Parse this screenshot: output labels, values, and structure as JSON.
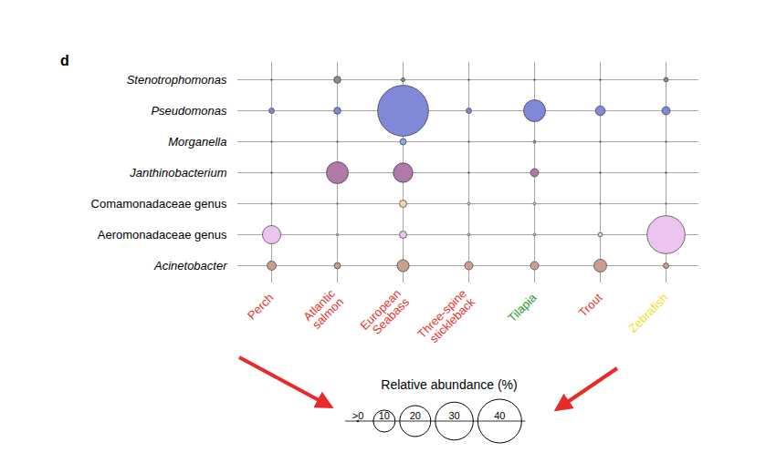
{
  "chart_data": {
    "type": "bubble",
    "title": "d",
    "x": [
      {
        "label": "Perch",
        "color": "#e8332a"
      },
      {
        "label": "Atlantic salmon",
        "color": "#e8332a"
      },
      {
        "label": "European Seabass",
        "color": "#e8332a"
      },
      {
        "label": "Three-spine stickleback",
        "color": "#e8332a"
      },
      {
        "label": "Tilapia",
        "color": "#2a9a2a"
      },
      {
        "label": "Trout",
        "color": "#e8332a"
      },
      {
        "label": "Zebrafish",
        "color": "#f0e030"
      }
    ],
    "series": [
      {
        "name": "Stenotrophomonas",
        "color": "#8c8c8c",
        "values": [
          0.05,
          1,
          0.3,
          0.05,
          0.05,
          0.05,
          0.4
        ]
      },
      {
        "name": "Pseudomonas",
        "color": "#8088d8",
        "values": [
          0.6,
          1,
          54,
          0.6,
          10,
          2,
          1.4
        ]
      },
      {
        "name": "Morganella",
        "color": "#88aaee",
        "values": [
          0.05,
          0.05,
          0.8,
          0.05,
          0.15,
          0.05,
          0.05
        ]
      },
      {
        "name": "Janthinobacterium",
        "color": "#b07aa8",
        "values": [
          0.05,
          10,
          8,
          0.05,
          1.4,
          0.05,
          0.05
        ]
      },
      {
        "name": "Comamonadaceae genus",
        "color": "#f5d9a8",
        "values": [
          0.05,
          0.05,
          1.1,
          0.15,
          0.15,
          0.05,
          0.05
        ]
      },
      {
        "name": "Aeromonadaceae genus",
        "color": "#ebc5f0",
        "values": [
          7,
          0.1,
          1.1,
          0.15,
          0.15,
          0.4,
          30
        ]
      },
      {
        "name": "Acinetobacter",
        "color": "#c9a090",
        "values": [
          1.7,
          0.8,
          3,
          1.4,
          1.4,
          3.4,
          0.6
        ]
      }
    ],
    "size_legend": {
      "title": "Relative abundance (%)",
      "values": [
        {
          "value": 0.05,
          "label": ">0"
        },
        10,
        20,
        30,
        40
      ]
    },
    "grid": true
  }
}
